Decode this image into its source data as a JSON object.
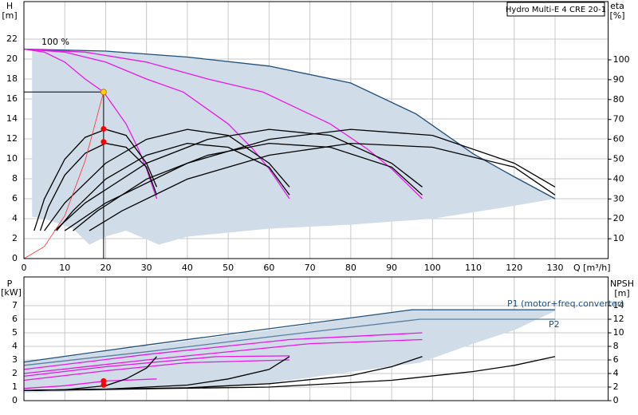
{
  "chart_data": [
    {
      "type": "line",
      "title": "Hydro Multi-E 4 CRE 20-1",
      "y_label": "H",
      "y_unit": "[m]",
      "y2_label": "eta",
      "y2_unit": "[%]",
      "x_label": "Q [m³/h]",
      "annotation": "100 %",
      "xlim": [
        0,
        143
      ],
      "xticks": [
        0,
        10,
        20,
        30,
        40,
        50,
        60,
        70,
        80,
        90,
        100,
        110,
        120,
        130
      ],
      "xtick_labels": true,
      "ylim": [
        0,
        25.76
      ],
      "yticks": [
        0,
        2,
        4,
        6,
        8,
        10,
        12,
        14,
        16,
        18,
        20,
        22
      ],
      "y2lim": [
        0,
        129.3
      ],
      "y2ticks": [
        10,
        20,
        30,
        40,
        50,
        60,
        70,
        80,
        90,
        100
      ],
      "grid": true,
      "series": [
        {
          "color": "#d0dce7",
          "fill": true,
          "x": [
            2,
            2,
            20,
            40,
            60,
            80,
            96,
            110,
            120,
            130,
            120,
            100,
            80,
            60,
            40,
            33,
            25,
            20,
            16,
            12,
            5
          ],
          "values": [
            4.2,
            21,
            20.8,
            20.2,
            19.3,
            17.6,
            14.5,
            10.5,
            8.2,
            6,
            5.3,
            4,
            3.4,
            3,
            2.2,
            1.4,
            2.8,
            2.2,
            1.4,
            3,
            4
          ]
        },
        {
          "color": "#1f4e79",
          "x": [
            0,
            20,
            40,
            60,
            80,
            96,
            110,
            120,
            130
          ],
          "values": [
            21,
            20.8,
            20.2,
            19.3,
            17.6,
            14.5,
            10.5,
            8.2,
            6
          ]
        },
        {
          "color": "#e619e6",
          "x": [
            0,
            5,
            10,
            15,
            19.5,
            25,
            28,
            30,
            32.5
          ],
          "values": [
            21,
            20.7,
            19.7,
            18,
            16.7,
            13.5,
            11,
            9,
            6
          ]
        },
        {
          "color": "#e619e6",
          "x": [
            0,
            10,
            20,
            30,
            39,
            50,
            56,
            60,
            65
          ],
          "values": [
            21,
            20.7,
            19.7,
            18,
            16.7,
            13.5,
            11,
            9,
            6
          ]
        },
        {
          "color": "#e619e6",
          "x": [
            0,
            15,
            30,
            45,
            58.5,
            75,
            84,
            90,
            97.5
          ],
          "values": [
            21,
            20.7,
            19.7,
            18,
            16.7,
            13.5,
            11,
            9,
            6
          ]
        },
        {
          "color": "#000000",
          "axis": "y2",
          "x": [
            2.5,
            5,
            10,
            15,
            20,
            25,
            30,
            32.5
          ],
          "values": [
            14,
            30,
            50,
            61,
            65,
            62,
            48,
            36
          ]
        },
        {
          "color": "#000000",
          "axis": "y2",
          "x": [
            4,
            6,
            10,
            15,
            20,
            25,
            30,
            32.5
          ],
          "values": [
            14,
            26,
            42,
            53,
            58,
            56,
            46,
            32
          ]
        },
        {
          "color": "#000000",
          "axis": "y2",
          "x": [
            5,
            10,
            20,
            30,
            40,
            50,
            60,
            65
          ],
          "values": [
            14,
            28,
            48,
            60,
            65,
            62,
            48,
            36
          ]
        },
        {
          "color": "#000000",
          "axis": "y2",
          "x": [
            8,
            12,
            20,
            30,
            40,
            50,
            60,
            65
          ],
          "values": [
            14,
            24,
            40,
            52,
            58,
            56,
            46,
            32
          ]
        },
        {
          "color": "#000000",
          "axis": "y2",
          "x": [
            7.5,
            15,
            30,
            45,
            60,
            75,
            90,
            97.5
          ],
          "values": [
            14,
            28,
            48,
            60,
            65,
            62,
            48,
            36
          ]
        },
        {
          "color": "#000000",
          "axis": "y2",
          "x": [
            12,
            18,
            30,
            45,
            60,
            75,
            90,
            97.5
          ],
          "values": [
            14,
            24,
            40,
            52,
            58,
            56,
            46,
            32
          ]
        },
        {
          "color": "#000000",
          "axis": "y2",
          "x": [
            10,
            20,
            40,
            60,
            80,
            100,
            120,
            130
          ],
          "values": [
            14,
            28,
            48,
            60,
            65,
            62,
            48,
            36
          ]
        },
        {
          "color": "#000000",
          "axis": "y2",
          "x": [
            16,
            24,
            40,
            60,
            80,
            100,
            120,
            130
          ],
          "values": [
            14,
            24,
            40,
            52,
            58,
            56,
            46,
            32
          ]
        },
        {
          "color": "#ff3030",
          "x": [
            0,
            5,
            10,
            15,
            19.5
          ],
          "values": [
            0,
            1.2,
            4.3,
            9.8,
            16.7
          ]
        },
        {
          "color": "#ffd700",
          "marker": true,
          "guide": true,
          "x": [
            19.5
          ],
          "values": [
            16.7
          ]
        },
        {
          "color": "#ff0000",
          "marker": true,
          "x": [
            19.5,
            19.5
          ],
          "values": [
            13,
            11.7
          ]
        }
      ]
    },
    {
      "type": "line",
      "y_label": "P",
      "y_unit": "[kW]",
      "y2_label": "NPSH",
      "y2_unit": "[m]",
      "annotations": [
        "P1 (motor+freq.converter)",
        "P2"
      ],
      "xlim": [
        0,
        143
      ],
      "xticks": [
        0,
        10,
        20,
        30,
        40,
        50,
        60,
        70,
        80,
        90,
        100,
        110,
        120,
        130
      ],
      "xtick_labels": false,
      "ylim": [
        0,
        9.12
      ],
      "yticks": [
        0,
        1,
        2,
        3,
        4,
        5,
        6,
        7
      ],
      "y2lim": [
        0,
        18.24
      ],
      "y2ticks": [
        0,
        2,
        4,
        6,
        8,
        10,
        12,
        14
      ],
      "grid": true,
      "series": [
        {
          "color": "#d0dce7",
          "fill": true,
          "x": [
            0,
            30,
            60,
            95,
            130,
            130,
            120,
            110,
            97,
            60,
            30,
            0
          ],
          "values": [
            2.85,
            4,
            5.2,
            6.7,
            6.7,
            6.6,
            5.2,
            4.2,
            2.8,
            1.3,
            0.8,
            0.6
          ]
        },
        {
          "color": "#1f4e79",
          "x": [
            0,
            30,
            60,
            95,
            130
          ],
          "values": [
            2.85,
            4.1,
            5.3,
            6.7,
            6.7
          ]
        },
        {
          "color": "#5a7fa3",
          "x": [
            0,
            30,
            60,
            97,
            130
          ],
          "values": [
            2.6,
            3.6,
            4.7,
            6,
            6
          ]
        },
        {
          "color": "#e619e6",
          "x": [
            0,
            30,
            65,
            97.5
          ],
          "values": [
            2.3,
            3.4,
            4.5,
            5
          ]
        },
        {
          "color": "#e619e6",
          "x": [
            0,
            30,
            70,
            97.5
          ],
          "values": [
            2,
            3,
            4.2,
            4.5
          ]
        },
        {
          "color": "#e619e6",
          "x": [
            0,
            20,
            47,
            65
          ],
          "values": [
            1.8,
            2.5,
            3.24,
            3.3
          ]
        },
        {
          "color": "#e619e6",
          "x": [
            0,
            20,
            40,
            65
          ],
          "values": [
            1.5,
            2.2,
            2.8,
            3
          ]
        },
        {
          "color": "#e619e6",
          "x": [
            0,
            10,
            20,
            32.5
          ],
          "values": [
            0.9,
            1.1,
            1.45,
            1.6
          ]
        },
        {
          "color": "#000000",
          "axis": "y2",
          "x": [
            0,
            10,
            20,
            25,
            30,
            32.5
          ],
          "values": [
            1.5,
            1.6,
            2.2,
            3.2,
            4.8,
            6.5
          ]
        },
        {
          "color": "#000000",
          "axis": "y2",
          "x": [
            0,
            20,
            40,
            50,
            60,
            65
          ],
          "values": [
            1.5,
            1.7,
            2.3,
            3.2,
            4.6,
            6.5
          ]
        },
        {
          "color": "#000000",
          "axis": "y2",
          "x": [
            0,
            40,
            60,
            80,
            90,
            97.5
          ],
          "values": [
            1.5,
            1.9,
            2.5,
            3.7,
            5,
            6.5
          ]
        },
        {
          "color": "#000000",
          "axis": "y2",
          "x": [
            0,
            60,
            90,
            110,
            120,
            130
          ],
          "values": [
            1.5,
            2,
            3,
            4.3,
            5.2,
            6.5
          ]
        },
        {
          "color": "#ff0000",
          "marker": true,
          "x": [
            19.5,
            19.5
          ],
          "values": [
            1.15,
            1.45
          ]
        }
      ]
    }
  ]
}
